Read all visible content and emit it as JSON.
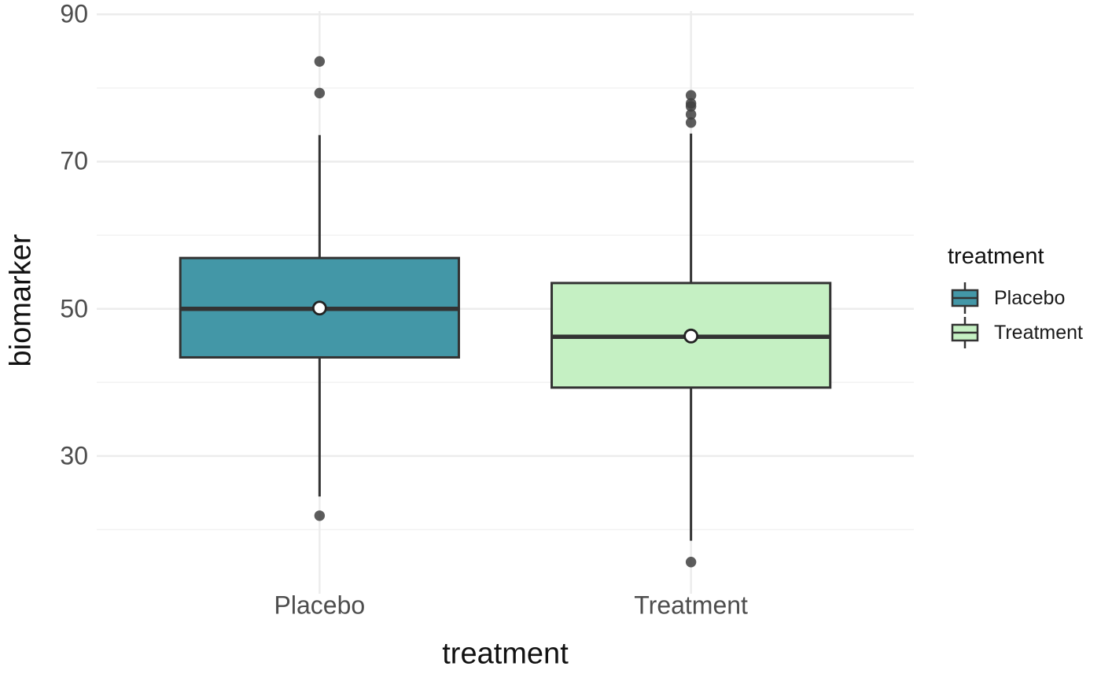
{
  "chart_data": {
    "type": "boxplot",
    "title": "",
    "xlabel": "treatment",
    "ylabel": "biomarker",
    "categories": [
      "Placebo",
      "Treatment"
    ],
    "ylim": [
      11.3,
      90.45
    ],
    "y_major_ticks": [
      30,
      50,
      70,
      90
    ],
    "y_minor_ticks": [
      20,
      40,
      60,
      80
    ],
    "grid": "on",
    "legend": {
      "title": "treatment",
      "position": "right",
      "entries": [
        {
          "label": "Placebo",
          "color": "#4397a7"
        },
        {
          "label": "Treatment",
          "color": "#c5f0c3"
        }
      ]
    },
    "series": [
      {
        "name": "Placebo",
        "fill": "#4397a7",
        "whisker_low": 24.5,
        "q1": 43.4,
        "median": 50.0,
        "q3": 56.9,
        "whisker_high": 73.6,
        "mean": 50.1,
        "outliers": [
          83.6,
          79.3,
          21.9
        ]
      },
      {
        "name": "Treatment",
        "fill": "#c5f0c3",
        "whisker_low": 18.5,
        "q1": 39.3,
        "median": 46.2,
        "q3": 53.5,
        "whisker_high": 73.8,
        "mean": 46.3,
        "outliers": [
          79.0,
          77.9,
          77.5,
          76.4,
          75.3,
          15.6
        ]
      }
    ],
    "style": {
      "box_line_color": "#333333",
      "mean_dot_stroke": "#222222",
      "mean_dot_fill": "#ffffff",
      "outlier_color": "#404040",
      "grid_major_color": "#ececec",
      "grid_minor_color": "#f2f2f2",
      "tick_label_color": "#4d4d4d",
      "title_color": "#111111",
      "background": "#ffffff"
    }
  }
}
